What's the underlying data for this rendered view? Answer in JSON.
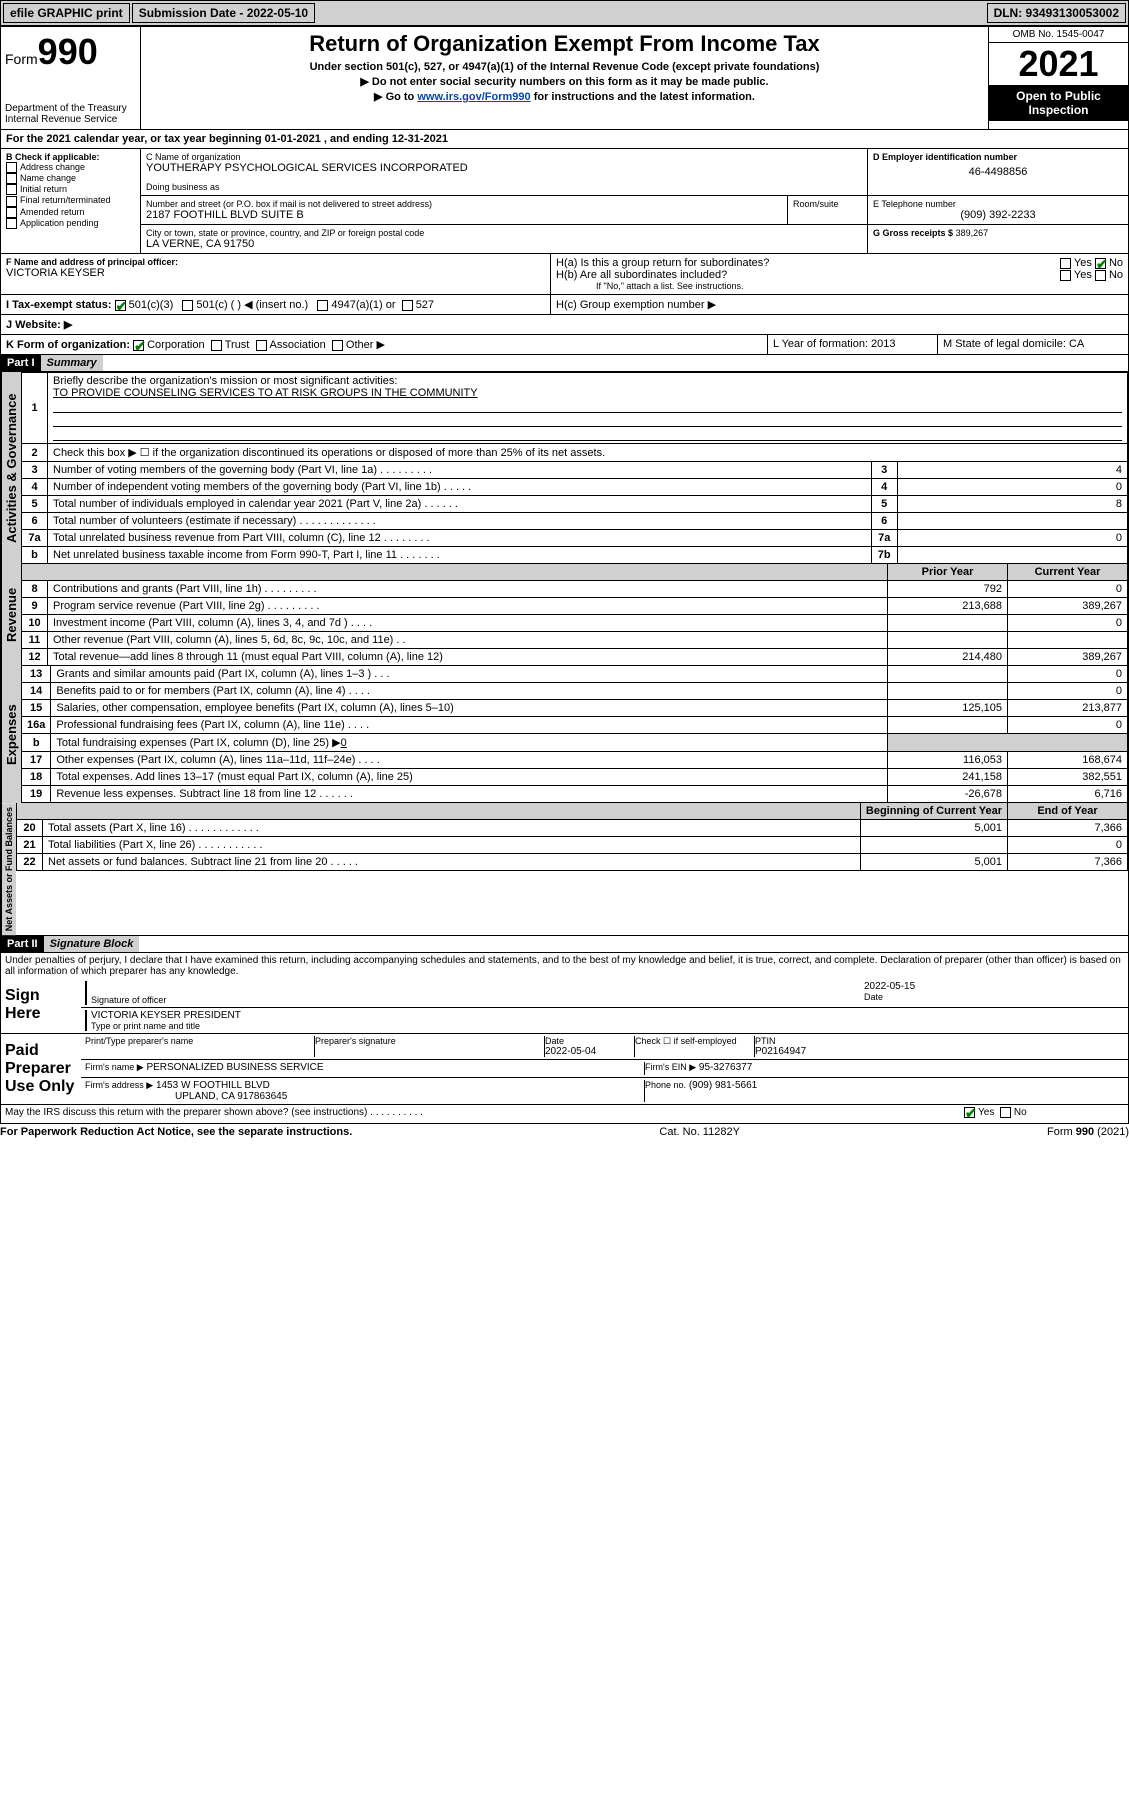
{
  "topbar": {
    "efile": "efile GRAPHIC print",
    "sub_label": "Submission Date - 2022-05-10",
    "dln": "DLN: 93493130053002"
  },
  "header": {
    "form_label": "Form",
    "form_num": "990",
    "dept": "Department of the Treasury",
    "irs": "Internal Revenue Service",
    "title": "Return of Organization Exempt From Income Tax",
    "sub1": "Under section 501(c), 527, or 4947(a)(1) of the Internal Revenue Code (except private foundations)",
    "sub2": "▶ Do not enter social security numbers on this form as it may be made public.",
    "sub3_pre": "▶ Go to ",
    "sub3_link": "www.irs.gov/Form990",
    "sub3_post": " for instructions and the latest information.",
    "omb": "OMB No. 1545-0047",
    "year": "2021",
    "open": "Open to Public Inspection"
  },
  "A": {
    "text": "For the 2021 calendar year, or tax year beginning 01-01-2021   , and ending 12-31-2021"
  },
  "B": {
    "label": "B Check if applicable:",
    "items": [
      "Address change",
      "Name change",
      "Initial return",
      "Final return/terminated",
      "Amended return",
      "Application pending"
    ]
  },
  "C": {
    "name_label": "C Name of organization",
    "name": "YOUTHERAPY PSYCHOLOGICAL SERVICES INCORPORATED",
    "dba_label": "Doing business as",
    "street_label": "Number and street (or P.O. box if mail is not delivered to street address)",
    "room_label": "Room/suite",
    "street": "2187 FOOTHILL BLVD SUITE B",
    "city_label": "City or town, state or province, country, and ZIP or foreign postal code",
    "city": "LA VERNE, CA  91750"
  },
  "D": {
    "label": "D Employer identification number",
    "val": "46-4498856"
  },
  "E": {
    "label": "E Telephone number",
    "val": "(909) 392-2233"
  },
  "G": {
    "label": "G Gross receipts $",
    "val": "389,267"
  },
  "F": {
    "label": "F  Name and address of principal officer:",
    "val": "VICTORIA KEYSER"
  },
  "H": {
    "a": "H(a)  Is this a group return for subordinates?",
    "b": "H(b)  Are all subordinates included?",
    "b_note": "If \"No,\" attach a list. See instructions.",
    "c": "H(c)  Group exemption number ▶",
    "yes": "Yes",
    "no": "No"
  },
  "I": {
    "label": "I   Tax-exempt status:",
    "o1": "501(c)(3)",
    "o2": "501(c) (  ) ◀ (insert no.)",
    "o3": "4947(a)(1) or",
    "o4": "527"
  },
  "J": {
    "label": "J   Website: ▶"
  },
  "K": {
    "label": "K Form of organization:",
    "o1": "Corporation",
    "o2": "Trust",
    "o3": "Association",
    "o4": "Other ▶"
  },
  "L": {
    "label": "L Year of formation: 2013"
  },
  "M": {
    "label": "M State of legal domicile: CA"
  },
  "part1": {
    "hdr": "Part I",
    "title": "Summary"
  },
  "summary": {
    "l1": "Briefly describe the organization's mission or most significant activities:",
    "l1_val": "TO PROVIDE COUNSELING SERVICES TO AT RISK GROUPS IN THE COMMUNITY",
    "l2": "Check this box ▶ ☐  if the organization discontinued its operations or disposed of more than 25% of its net assets.",
    "l3": "Number of voting members of the governing body (Part VI, line 1a)  .   .   .   .   .   .   .   .   .",
    "l4": "Number of independent voting members of the governing body (Part VI, line 1b)  .   .   .   .   .",
    "l5": "Total number of individuals employed in calendar year 2021 (Part V, line 2a)   .   .   .   .   .   .",
    "l6": "Total number of volunteers (estimate if necessary)  .   .   .   .   .   .   .   .   .   .   .   .   .",
    "l7a": "Total unrelated business revenue from Part VIII, column (C), line 12  .   .   .   .   .   .   .   .",
    "l7b": "Net unrelated business taxable income from Form 990-T, Part I, line 11  .   .   .   .   .   .   .",
    "v3": "4",
    "v4": "0",
    "v5": "8",
    "v6": "",
    "v7a": "0",
    "v7b": "",
    "prior": "Prior Year",
    "current": "Current Year",
    "l8": "Contributions and grants (Part VIII, line 1h)   .   .   .   .   .   .   .   .   .",
    "l9": "Program service revenue (Part VIII, line 2g)   .   .   .   .   .   .   .   .   .",
    "l10": "Investment income (Part VIII, column (A), lines 3, 4, and 7d )   .   .   .   .",
    "l11": "Other revenue (Part VIII, column (A), lines 5, 6d, 8c, 9c, 10c, and 11e)   .   .",
    "l12": "Total revenue—add lines 8 through 11 (must equal Part VIII, column (A), line 12)",
    "l13": "Grants and similar amounts paid (Part IX, column (A), lines 1–3 )   .   .   .",
    "l14": "Benefits paid to or for members (Part IX, column (A), line 4)   .   .   .   .",
    "l15": "Salaries, other compensation, employee benefits (Part IX, column (A), lines 5–10)",
    "l16a": "Professional fundraising fees (Part IX, column (A), line 11e)   .   .   .   .",
    "l16b_pre": "Total fundraising expenses (Part IX, column (D), line 25) ▶",
    "l16b_val": "0",
    "l17": "Other expenses (Part IX, column (A), lines 11a–11d, 11f–24e)   .   .   .   .",
    "l18": "Total expenses. Add lines 13–17 (must equal Part IX, column (A), line 25)",
    "l19": "Revenue less expenses. Subtract line 18 from line 12   .   .   .   .   .   .",
    "p8": "792",
    "c8": "0",
    "p9": "213,688",
    "c9": "389,267",
    "p10": "",
    "c10": "0",
    "p11": "",
    "c11": "",
    "p12": "214,480",
    "c12": "389,267",
    "p13": "",
    "c13": "0",
    "p14": "",
    "c14": "0",
    "p15": "125,105",
    "c15": "213,877",
    "p16a": "",
    "c16a": "0",
    "p17": "116,053",
    "c17": "168,674",
    "p18": "241,158",
    "c18": "382,551",
    "p19": "-26,678",
    "c19": "6,716",
    "boy": "Beginning of Current Year",
    "eoy": "End of Year",
    "l20": "Total assets (Part X, line 16)   .   .   .   .   .   .   .   .   .   .   .   .",
    "l21": "Total liabilities (Part X, line 26)   .   .   .   .   .   .   .   .   .   .   .",
    "l22": "Net assets or fund balances. Subtract line 21 from line 20   .   .   .   .   .",
    "p20": "5,001",
    "c20": "7,366",
    "p21": "",
    "c21": "0",
    "p22": "5,001",
    "c22": "7,366"
  },
  "vlabels": {
    "ag": "Activities & Governance",
    "rev": "Revenue",
    "exp": "Expenses",
    "na": "Net Assets or Fund Balances"
  },
  "part2": {
    "hdr": "Part II",
    "title": "Signature Block"
  },
  "sig": {
    "decl": "Under penalties of perjury, I declare that I have examined this return, including accompanying schedules and statements, and to the best of my knowledge and belief, it is true, correct, and complete. Declaration of preparer (other than officer) is based on all information of which preparer has any knowledge.",
    "sign_here": "Sign Here",
    "sig_officer": "Signature of officer",
    "date": "Date",
    "date_val": "2022-05-15",
    "name_title": "VICTORIA KEYSER  PRESIDENT",
    "name_title_label": "Type or print name and title",
    "paid": "Paid Preparer Use Only",
    "prep_name_label": "Print/Type preparer's name",
    "prep_sig_label": "Preparer's signature",
    "prep_date_label": "Date",
    "prep_date": "2022-05-04",
    "check_if": "Check ☐ if self-employed",
    "ptin_label": "PTIN",
    "ptin": "P02164947",
    "firm_name_label": "Firm's name    ▶",
    "firm_name": "PERSONALIZED BUSINESS SERVICE",
    "firm_ein_label": "Firm's EIN ▶",
    "firm_ein": "95-3276377",
    "firm_addr_label": "Firm's address ▶",
    "firm_addr1": "1453 W FOOTHILL BLVD",
    "firm_addr2": "UPLAND, CA  917863645",
    "phone_label": "Phone no.",
    "phone": "(909) 981-5661",
    "may_irs": "May the IRS discuss this return with the preparer shown above? (see instructions)   .   .   .   .   .   .   .   .   .   .",
    "yes": "Yes",
    "no": "No"
  },
  "footer": {
    "left": "For Paperwork Reduction Act Notice, see the separate instructions.",
    "mid": "Cat. No. 11282Y",
    "right": "Form 990 (2021)"
  }
}
